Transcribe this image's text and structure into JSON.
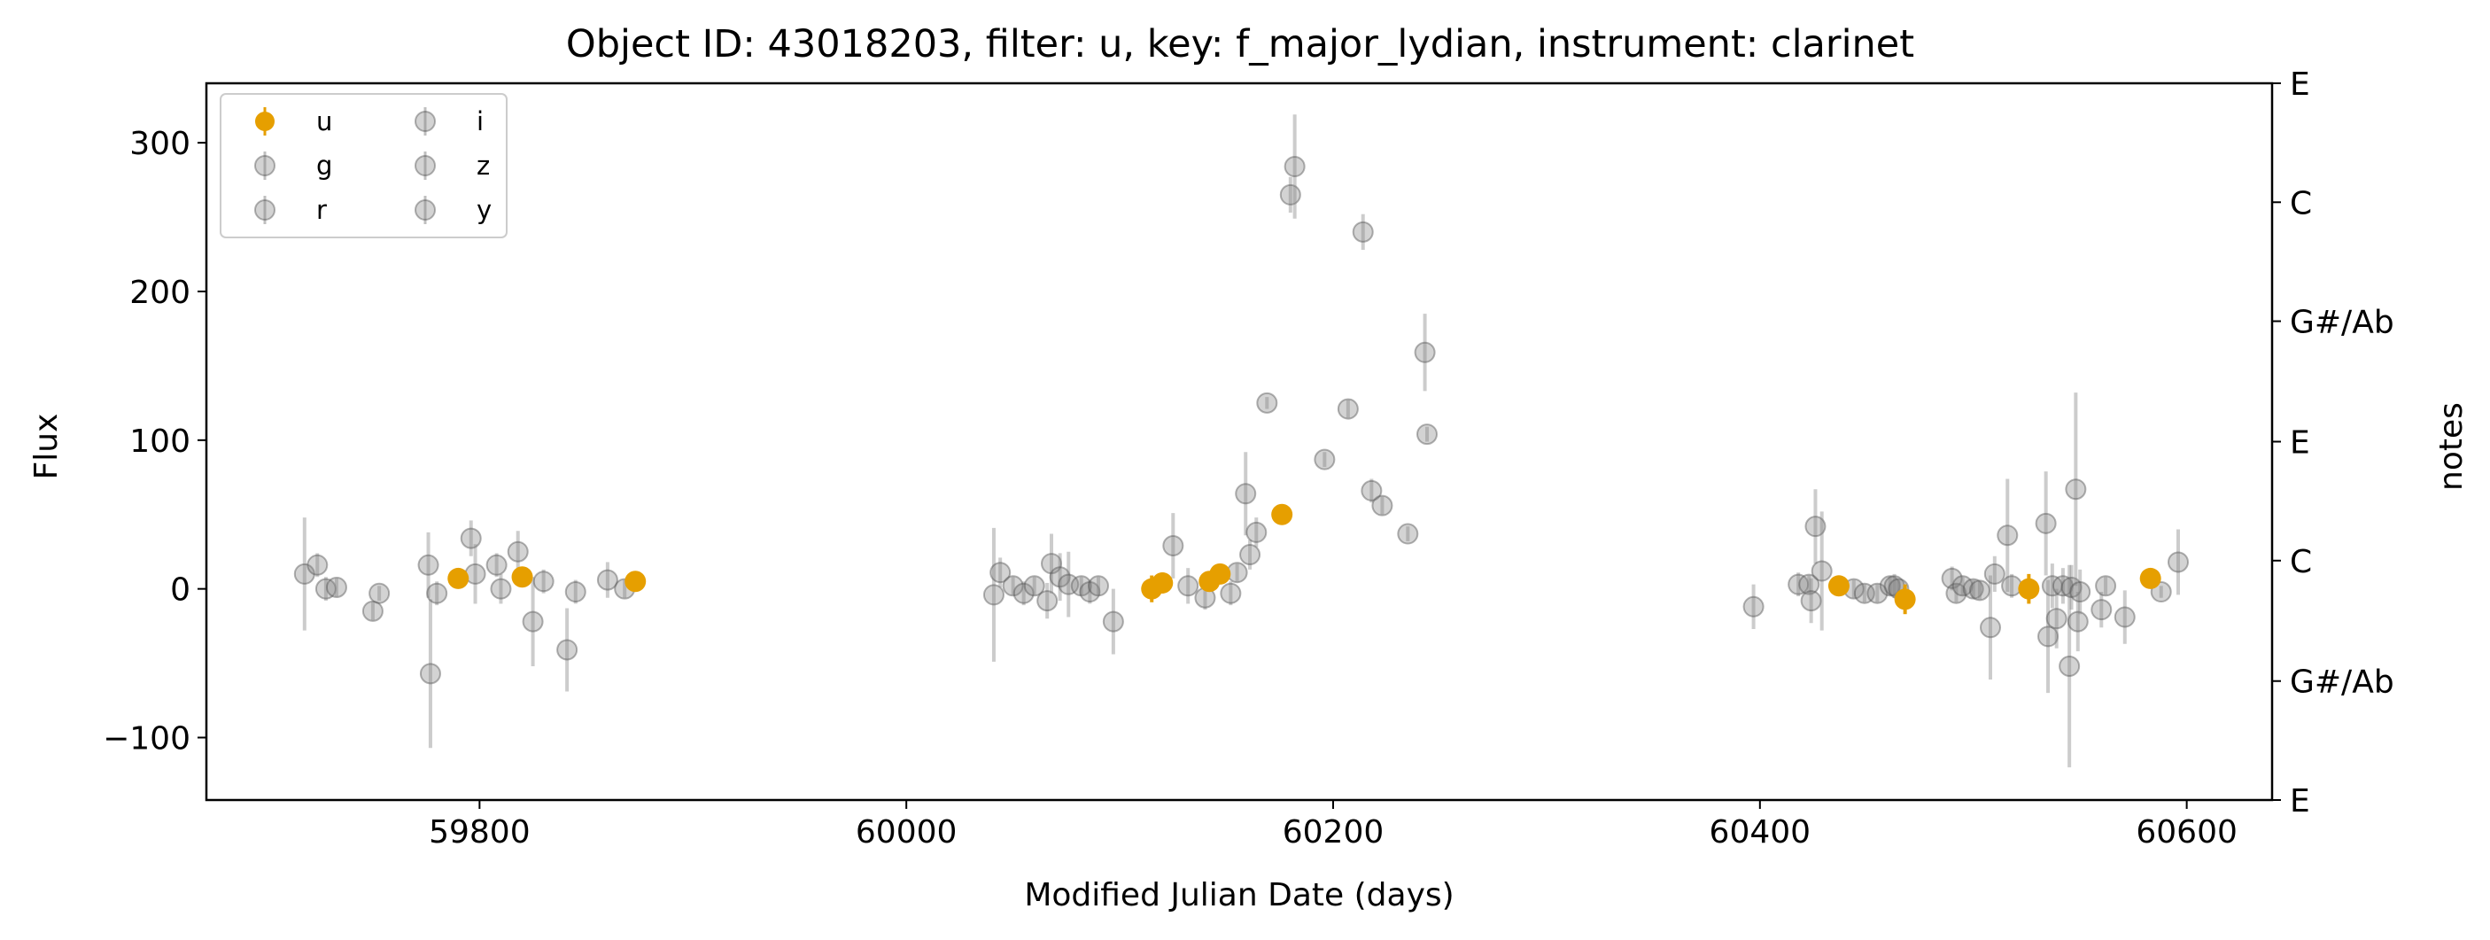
{
  "chart_data": {
    "type": "scatter",
    "title": "Object ID: 43018203, filter: u, key: f_major_lydian, instrument: clarinet",
    "xlabel": "Modified Julian Date (days)",
    "ylabel": "Flux",
    "y2label": "notes",
    "xlim": [
      59672,
      60640
    ],
    "ylim": [
      -142,
      340
    ],
    "xticks": [
      59800,
      60000,
      60200,
      60400,
      60600
    ],
    "yticks": [
      -100,
      0,
      100,
      200,
      300
    ],
    "xtick_labels": [
      "59800",
      "60000",
      "60200",
      "60400",
      "60600"
    ],
    "ytick_labels": [
      "−100",
      "0",
      "100",
      "200",
      "300"
    ],
    "y2_ticks": [
      {
        "value": 340,
        "label": "E"
      },
      {
        "value": 260,
        "label": "C"
      },
      {
        "value": 180,
        "label": "G#/Ab"
      },
      {
        "value": 99,
        "label": "E"
      },
      {
        "value": 19,
        "label": "C"
      },
      {
        "value": -62,
        "label": "G#/Ab"
      },
      {
        "value": -142,
        "label": "E"
      }
    ],
    "legend": {
      "placement": "upper-left",
      "columns": 2,
      "entries": [
        "u",
        "g",
        "r",
        "i",
        "z",
        "y"
      ]
    },
    "colors": {
      "highlight": "#e69f00",
      "other": "#808080"
    },
    "series": [
      {
        "name": "u",
        "highlight": true,
        "points": [
          {
            "x": 59790,
            "y": 7,
            "err": 5
          },
          {
            "x": 59820,
            "y": 8,
            "err": 6
          },
          {
            "x": 59873,
            "y": 5,
            "err": 5
          },
          {
            "x": 60115,
            "y": 0,
            "err": 9
          },
          {
            "x": 60120,
            "y": 4,
            "err": 7
          },
          {
            "x": 60142,
            "y": 5,
            "err": 6
          },
          {
            "x": 60147,
            "y": 10,
            "err": 6
          },
          {
            "x": 60176,
            "y": 50,
            "err": 5
          },
          {
            "x": 60437,
            "y": 2,
            "err": 6
          },
          {
            "x": 60468,
            "y": -7,
            "err": 10
          },
          {
            "x": 60526,
            "y": 0,
            "err": 10
          },
          {
            "x": 60583,
            "y": 7,
            "err": 4
          }
        ]
      },
      {
        "name": "g",
        "highlight": false,
        "points": [
          {
            "x": 59718,
            "y": 10,
            "err": 38
          },
          {
            "x": 59724,
            "y": 16,
            "err": 8
          },
          {
            "x": 59728,
            "y": 0,
            "err": 8
          },
          {
            "x": 59733,
            "y": 1,
            "err": 6
          },
          {
            "x": 59750,
            "y": -15,
            "err": 6
          },
          {
            "x": 59753,
            "y": -3,
            "err": 5
          },
          {
            "x": 59776,
            "y": 16,
            "err": 22
          },
          {
            "x": 59777,
            "y": -57,
            "err": 50
          },
          {
            "x": 59780,
            "y": -3,
            "err": 8
          },
          {
            "x": 59796,
            "y": 34,
            "err": 12
          },
          {
            "x": 59798,
            "y": 10,
            "err": 20
          },
          {
            "x": 59808,
            "y": 16,
            "err": 8
          },
          {
            "x": 59810,
            "y": 0,
            "err": 10
          },
          {
            "x": 59818,
            "y": 25,
            "err": 14
          },
          {
            "x": 59825,
            "y": -22,
            "err": 30
          },
          {
            "x": 59830,
            "y": 5,
            "err": 8
          },
          {
            "x": 59841,
            "y": -41,
            "err": 28
          },
          {
            "x": 59845,
            "y": -2,
            "err": 8
          },
          {
            "x": 59860,
            "y": 6,
            "err": 12
          },
          {
            "x": 59868,
            "y": 0,
            "err": 6
          }
        ]
      },
      {
        "name": "r",
        "highlight": false,
        "points": [
          {
            "x": 60041,
            "y": -4,
            "err": 45
          },
          {
            "x": 60044,
            "y": 11,
            "err": 10
          },
          {
            "x": 60050,
            "y": 2,
            "err": 6
          },
          {
            "x": 60055,
            "y": -3,
            "err": 8
          },
          {
            "x": 60060,
            "y": 2,
            "err": 6
          },
          {
            "x": 60066,
            "y": -8,
            "err": 12
          },
          {
            "x": 60068,
            "y": 17,
            "err": 20
          },
          {
            "x": 60072,
            "y": 8,
            "err": 16
          },
          {
            "x": 60076,
            "y": 3,
            "err": 22
          },
          {
            "x": 60082,
            "y": 2,
            "err": 6
          },
          {
            "x": 60086,
            "y": -2,
            "err": 8
          },
          {
            "x": 60090,
            "y": 2,
            "err": 6
          },
          {
            "x": 60097,
            "y": -22,
            "err": 22
          },
          {
            "x": 60125,
            "y": 29,
            "err": 22
          },
          {
            "x": 60132,
            "y": 2,
            "err": 12
          },
          {
            "x": 60140,
            "y": -6,
            "err": 8
          }
        ]
      },
      {
        "name": "i",
        "highlight": false,
        "points": [
          {
            "x": 60152,
            "y": -3,
            "err": 8
          },
          {
            "x": 60155,
            "y": 11,
            "err": 6
          },
          {
            "x": 60159,
            "y": 64,
            "err": 28
          },
          {
            "x": 60161,
            "y": 23,
            "err": 10
          },
          {
            "x": 60164,
            "y": 38,
            "err": 10
          },
          {
            "x": 60169,
            "y": 125,
            "err": 4
          },
          {
            "x": 60180,
            "y": 265,
            "err": 12
          },
          {
            "x": 60182,
            "y": 284,
            "err": 35
          },
          {
            "x": 60196,
            "y": 87,
            "err": 5
          },
          {
            "x": 60207,
            "y": 121,
            "err": 6
          },
          {
            "x": 60214,
            "y": 240,
            "err": 12
          },
          {
            "x": 60218,
            "y": 66,
            "err": 8
          },
          {
            "x": 60223,
            "y": 56,
            "err": 6
          },
          {
            "x": 60235,
            "y": 37,
            "err": 5
          },
          {
            "x": 60243,
            "y": 159,
            "err": 26
          },
          {
            "x": 60244,
            "y": 104,
            "err": 5
          }
        ]
      },
      {
        "name": "z",
        "highlight": false,
        "points": [
          {
            "x": 60397,
            "y": -12,
            "err": 15
          },
          {
            "x": 60418,
            "y": 3,
            "err": 8
          },
          {
            "x": 60423,
            "y": 3,
            "err": 6
          },
          {
            "x": 60424,
            "y": -8,
            "err": 15
          },
          {
            "x": 60426,
            "y": 42,
            "err": 25
          },
          {
            "x": 60429,
            "y": 12,
            "err": 40
          },
          {
            "x": 60444,
            "y": 0,
            "err": 6
          },
          {
            "x": 60449,
            "y": -3,
            "err": 6
          },
          {
            "x": 60455,
            "y": -3,
            "err": 6
          },
          {
            "x": 60461,
            "y": 2,
            "err": 6
          },
          {
            "x": 60463,
            "y": 2,
            "err": 8
          },
          {
            "x": 60465,
            "y": 0,
            "err": 6
          },
          {
            "x": 60490,
            "y": 7,
            "err": 8
          },
          {
            "x": 60492,
            "y": -3,
            "err": 6
          },
          {
            "x": 60495,
            "y": 2,
            "err": 6
          },
          {
            "x": 60500,
            "y": 0,
            "err": 6
          },
          {
            "x": 60503,
            "y": -1,
            "err": 6
          }
        ]
      },
      {
        "name": "y",
        "highlight": false,
        "points": [
          {
            "x": 60508,
            "y": -26,
            "err": 35
          },
          {
            "x": 60510,
            "y": 10,
            "err": 12
          },
          {
            "x": 60516,
            "y": 36,
            "err": 38
          },
          {
            "x": 60518,
            "y": 2,
            "err": 8
          },
          {
            "x": 60534,
            "y": 44,
            "err": 35
          },
          {
            "x": 60535,
            "y": -32,
            "err": 38
          },
          {
            "x": 60537,
            "y": 2,
            "err": 15
          },
          {
            "x": 60539,
            "y": -20,
            "err": 20
          },
          {
            "x": 60542,
            "y": 2,
            "err": 12
          },
          {
            "x": 60545,
            "y": -52,
            "err": 68
          },
          {
            "x": 60546,
            "y": 1,
            "err": 15
          },
          {
            "x": 60548,
            "y": 67,
            "err": 65
          },
          {
            "x": 60549,
            "y": -22,
            "err": 20
          },
          {
            "x": 60550,
            "y": -2,
            "err": 15
          },
          {
            "x": 60560,
            "y": -14,
            "err": 12
          },
          {
            "x": 60562,
            "y": 2,
            "err": 6
          },
          {
            "x": 60571,
            "y": -19,
            "err": 18
          },
          {
            "x": 60588,
            "y": -2,
            "err": 4
          },
          {
            "x": 60596,
            "y": 18,
            "err": 22
          }
        ]
      }
    ]
  }
}
